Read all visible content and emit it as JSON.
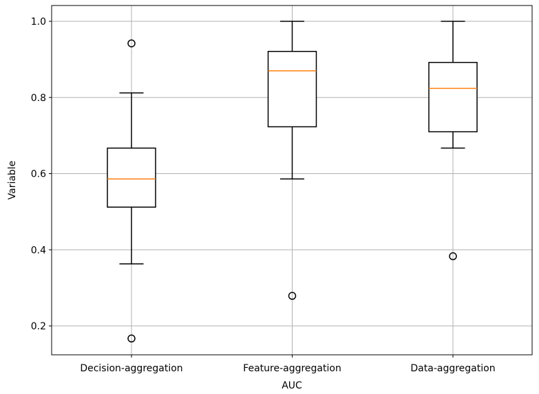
{
  "chart_data": {
    "type": "boxplot",
    "title": "",
    "xlabel": "AUC",
    "ylabel": "Variable",
    "ylim": [
      0.125,
      1.04
    ],
    "yticks": [
      0.2,
      0.4,
      0.6,
      0.8,
      1.0
    ],
    "ytick_labels": [
      "0.2",
      "0.4",
      "0.6",
      "0.8",
      "1.0"
    ],
    "grid": true,
    "categories": [
      "Decision-aggregation",
      "Feature-aggregation",
      "Data-aggregation"
    ],
    "boxes": [
      {
        "category": "Decision-aggregation",
        "whisker_low": 0.363,
        "q1": 0.512,
        "median": 0.586,
        "q3": 0.667,
        "whisker_high": 0.812,
        "outliers": [
          0.167,
          0.942
        ]
      },
      {
        "category": "Feature-aggregation",
        "whisker_low": 0.586,
        "q1": 0.723,
        "median": 0.87,
        "q3": 0.921,
        "whisker_high": 1.0,
        "outliers": [
          0.279
        ]
      },
      {
        "category": "Data-aggregation",
        "whisker_low": 0.667,
        "q1": 0.71,
        "median": 0.824,
        "q3": 0.892,
        "whisker_high": 1.0,
        "outliers": [
          0.383
        ]
      }
    ],
    "colors": {
      "box": "#000000",
      "median": "#ff7f0e",
      "grid": "#b0b0b0",
      "background": "#ffffff"
    }
  }
}
